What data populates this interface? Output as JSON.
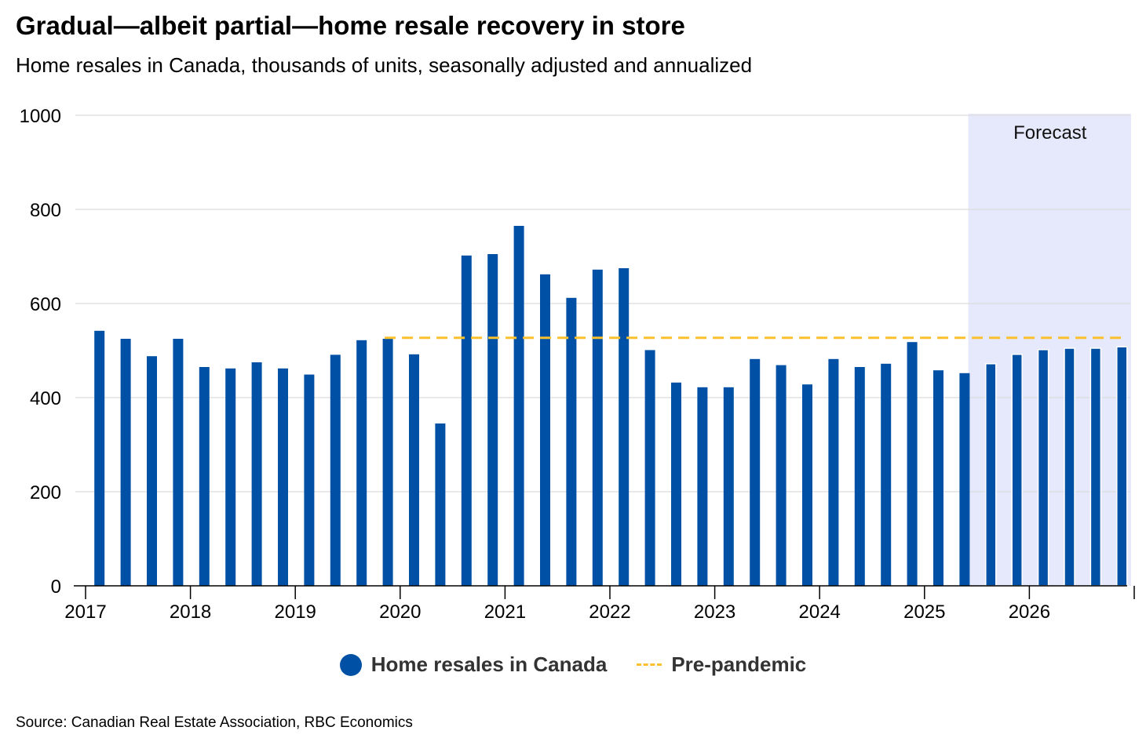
{
  "title": "Gradual—albeit partial—home resale recovery in store",
  "subtitle": "Home resales in Canada, thousands of units, seasonally adjusted and annualized",
  "source": "Source: Canadian Real Estate Association, RBC Economics",
  "colors": {
    "bar": "#0051a5",
    "reference": "#fbc02d",
    "forecast_band": "#e6e8fb",
    "grid": "#dcdcdc"
  },
  "legend": {
    "items": [
      {
        "label": "Home resales in Canada",
        "marker": "circle",
        "color": "#0051a5"
      },
      {
        "label": "Pre-pandemic",
        "marker": "dashed-line",
        "color": "#fbc02d"
      }
    ]
  },
  "chart_data": {
    "type": "bar",
    "ylim": [
      0,
      1000
    ],
    "yticks": [
      0,
      200,
      400,
      600,
      800,
      1000
    ],
    "x_tick_labels": [
      "2017",
      "2018",
      "2019",
      "2020",
      "2021",
      "2022",
      "2023",
      "2024",
      "2025",
      "2026"
    ],
    "x_range": [
      "2017",
      "2027"
    ],
    "categories": [
      "2017Q1",
      "2017Q2",
      "2017Q3",
      "2017Q4",
      "2018Q1",
      "2018Q2",
      "2018Q3",
      "2018Q4",
      "2019Q1",
      "2019Q2",
      "2019Q3",
      "2019Q4",
      "2020Q1",
      "2020Q2",
      "2020Q3",
      "2020Q4",
      "2021Q1",
      "2021Q2",
      "2021Q3",
      "2021Q4",
      "2022Q1",
      "2022Q2",
      "2022Q3",
      "2022Q4",
      "2023Q1",
      "2023Q2",
      "2023Q3",
      "2023Q4",
      "2024Q1",
      "2024Q2",
      "2024Q3",
      "2024Q4",
      "2025Q1",
      "2025Q2",
      "2025Q3",
      "2025Q4",
      "2026Q1",
      "2026Q2",
      "2026Q3",
      "2026Q4"
    ],
    "series": [
      {
        "name": "Home resales in Canada",
        "values": [
          542,
          525,
          488,
          525,
          465,
          462,
          475,
          462,
          449,
          491,
          522,
          525,
          492,
          345,
          702,
          705,
          765,
          662,
          612,
          672,
          675,
          501,
          432,
          422,
          422,
          482,
          469,
          428,
          482,
          465,
          472,
          518,
          458,
          452,
          472,
          492,
          502,
          505,
          505,
          508
        ]
      }
    ],
    "reference_line": {
      "name": "Pre-pandemic",
      "value": 527,
      "from": "2019Q4",
      "to": "2026Q4",
      "style": "dashed"
    },
    "forecast": {
      "label": "Forecast",
      "from": "2025Q3",
      "to": "2026Q4"
    },
    "grid": true,
    "legend_position": "bottom-center"
  }
}
